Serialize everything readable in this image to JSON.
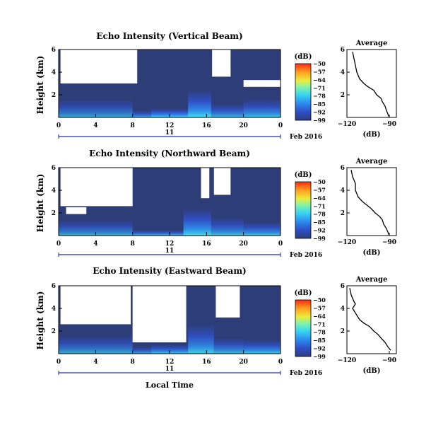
{
  "x_label": "Local Time",
  "date_label": "Feb 2016",
  "day_label": "11",
  "cbar_unit": "(dB)",
  "avg_title": "Average",
  "avg_xlabel": "(dB)",
  "chart_data": [
    {
      "type": "heatmap",
      "title": "Echo Intensity (Vertical Beam)",
      "ylabel": "Height (km)",
      "xlabel": "Local Time",
      "x_ticks": [
        "0",
        "4",
        "8",
        "12",
        "16",
        "20",
        "0"
      ],
      "x_range": [
        0,
        24
      ],
      "y_ticks": [
        "2",
        "4",
        "6"
      ],
      "y_range": [
        0,
        6
      ],
      "colorbar": {
        "unit": "(dB)",
        "ticks": [
          "-50",
          "-57",
          "-64",
          "-71",
          "-78",
          "-85",
          "-92",
          "-99"
        ],
        "range": [
          -99,
          -50
        ]
      },
      "clear_regions": [
        {
          "x": [
            0.2,
            8.5
          ],
          "y": [
            3.0,
            6.0
          ]
        },
        {
          "x": [
            16.6,
            18.6
          ],
          "y": [
            3.6,
            6.0
          ]
        },
        {
          "x": [
            20.0,
            24.0
          ],
          "y": [
            2.7,
            3.3
          ]
        }
      ],
      "echo_columns": [
        {
          "x": [
            0.0,
            8.0
          ],
          "top": 1.6,
          "value": -93
        },
        {
          "x": [
            8.0,
            10.0
          ],
          "top": 0.6,
          "value": -88
        },
        {
          "x": [
            10.0,
            14.0
          ],
          "top": 0.8,
          "value": -80
        },
        {
          "x": [
            14.0,
            16.5
          ],
          "top": 2.4,
          "value": -80
        },
        {
          "x": [
            16.5,
            20.0
          ],
          "top": 1.2,
          "value": -88
        },
        {
          "x": [
            20.0,
            24.0
          ],
          "top": 1.6,
          "value": -86
        }
      ],
      "average_profile": {
        "xlabel": "(dB)",
        "title": "Average",
        "xlim": [
          -120,
          -85
        ],
        "x_ticks": [
          "-120",
          "-90"
        ],
        "y_ticks": [
          "2",
          "4",
          "6"
        ],
        "ylim": [
          0,
          6
        ],
        "x": [
          -116,
          -115,
          -114,
          -113,
          -111,
          -108,
          -105,
          -101,
          -99,
          -96,
          -95,
          -93,
          -92,
          -91,
          -90
        ],
        "y": [
          5.8,
          5.2,
          4.6,
          4.0,
          3.4,
          3.0,
          2.7,
          2.4,
          2.0,
          1.7,
          1.4,
          1.0,
          0.6,
          0.3,
          0.0
        ]
      }
    },
    {
      "type": "heatmap",
      "title": "Echo Intensity (Northward Beam)",
      "ylabel": "Height (km)",
      "xlabel": "Local Time",
      "x_ticks": [
        "0",
        "4",
        "8",
        "12",
        "16",
        "20",
        "0"
      ],
      "x_range": [
        0,
        24
      ],
      "y_ticks": [
        "2",
        "4",
        "6"
      ],
      "y_range": [
        0,
        6
      ],
      "colorbar": {
        "unit": "(dB)",
        "ticks": [
          "-50",
          "-57",
          "-64",
          "-71",
          "-78",
          "-85",
          "-92",
          "-99"
        ],
        "range": [
          -99,
          -50
        ]
      },
      "clear_regions": [
        {
          "x": [
            0.2,
            8.0
          ],
          "y": [
            2.6,
            6.0
          ]
        },
        {
          "x": [
            15.4,
            16.3
          ],
          "y": [
            3.3,
            6.0
          ]
        },
        {
          "x": [
            16.8,
            18.6
          ],
          "y": [
            3.6,
            6.0
          ]
        },
        {
          "x": [
            0.8,
            3.0
          ],
          "y": [
            1.9,
            2.5
          ]
        }
      ],
      "echo_columns": [
        {
          "x": [
            0.0,
            8.0
          ],
          "top": 1.4,
          "value": -92
        },
        {
          "x": [
            8.0,
            13.5
          ],
          "top": 0.5,
          "value": -88
        },
        {
          "x": [
            13.5,
            16.5
          ],
          "top": 2.4,
          "value": -82
        },
        {
          "x": [
            16.5,
            20.0
          ],
          "top": 1.6,
          "value": -88
        },
        {
          "x": [
            20.0,
            24.0
          ],
          "top": 1.2,
          "value": -86
        }
      ],
      "average_profile": {
        "xlabel": "(dB)",
        "title": "Average",
        "xlim": [
          -120,
          -85
        ],
        "x_ticks": [
          "-120",
          "-90"
        ],
        "y_ticks": [
          "2",
          "4",
          "6"
        ],
        "ylim": [
          0,
          6
        ],
        "x": [
          -117,
          -116,
          -114,
          -114,
          -112,
          -109,
          -106,
          -103,
          -100,
          -97,
          -95,
          -94,
          -92,
          -91,
          -90
        ],
        "y": [
          5.8,
          5.2,
          4.6,
          4.0,
          3.4,
          3.0,
          2.7,
          2.4,
          2.0,
          1.7,
          1.4,
          1.0,
          0.6,
          0.3,
          0.0
        ]
      }
    },
    {
      "type": "heatmap",
      "title": "Echo Intensity (Eastward Beam)",
      "ylabel": "Height (km)",
      "xlabel": "Local Time",
      "x_ticks": [
        "0",
        "4",
        "8",
        "12",
        "16",
        "20",
        "0"
      ],
      "x_range": [
        0,
        24
      ],
      "y_ticks": [
        "2",
        "4",
        "6"
      ],
      "y_range": [
        0,
        6
      ],
      "colorbar": {
        "unit": "(dB)",
        "ticks": [
          "-50",
          "-57",
          "-64",
          "-71",
          "-78",
          "-85",
          "-92",
          "-99"
        ],
        "range": [
          -99,
          -50
        ]
      },
      "clear_regions": [
        {
          "x": [
            0.2,
            7.8
          ],
          "y": [
            2.6,
            6.0
          ]
        },
        {
          "x": [
            8.0,
            13.8
          ],
          "y": [
            1.0,
            6.0
          ]
        },
        {
          "x": [
            17.0,
            19.6
          ],
          "y": [
            3.2,
            6.0
          ]
        }
      ],
      "echo_columns": [
        {
          "x": [
            0.0,
            8.0
          ],
          "top": 1.6,
          "value": -92
        },
        {
          "x": [
            8.0,
            10.0
          ],
          "top": 0.6,
          "value": -90
        },
        {
          "x": [
            10.0,
            14.0
          ],
          "top": 0.8,
          "value": -84
        },
        {
          "x": [
            14.0,
            16.8
          ],
          "top": 2.6,
          "value": -84
        },
        {
          "x": [
            16.8,
            20.0
          ],
          "top": 1.4,
          "value": -88
        },
        {
          "x": [
            20.0,
            24.0
          ],
          "top": 1.2,
          "value": -84
        }
      ],
      "average_profile": {
        "xlabel": "(dB)",
        "title": "Average",
        "xlim": [
          -120,
          -85
        ],
        "x_ticks": [
          "-120",
          "-90"
        ],
        "y_ticks": [
          "2",
          "4",
          "6"
        ],
        "ylim": [
          0,
          6
        ],
        "x": [
          -118,
          -117,
          -115,
          -114,
          -116,
          -113,
          -111,
          -108,
          -104,
          -101,
          -98,
          -96,
          -93,
          -91,
          -89
        ],
        "y": [
          5.8,
          5.2,
          4.6,
          4.4,
          4.0,
          3.4,
          3.0,
          2.7,
          2.4,
          2.0,
          1.7,
          1.4,
          1.0,
          0.6,
          0.3
        ]
      }
    }
  ]
}
